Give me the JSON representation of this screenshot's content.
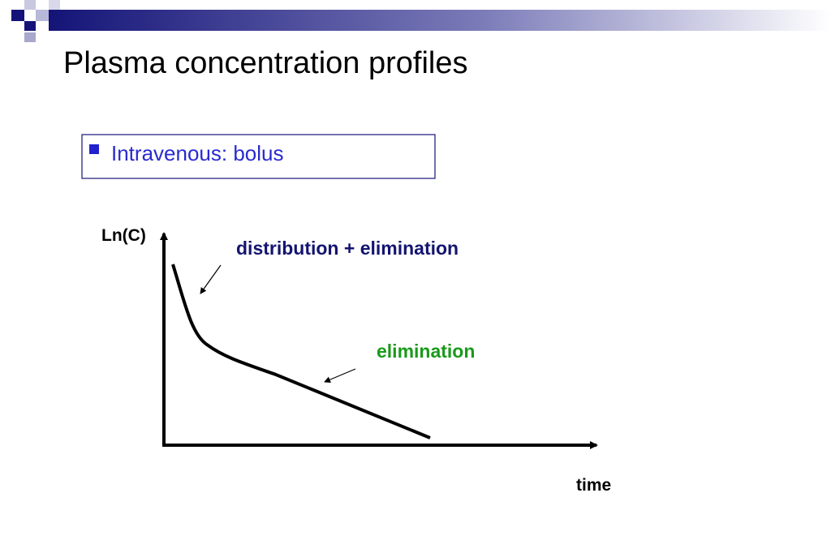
{
  "header": {
    "title": "Plasma concentration profiles"
  },
  "bullet": {
    "text": "Intravenous: bolus"
  },
  "diagram": {
    "y_axis_label": "Ln(C)",
    "x_axis_label": "time",
    "annotations": [
      "distribution + elimination",
      "elimination"
    ]
  }
}
